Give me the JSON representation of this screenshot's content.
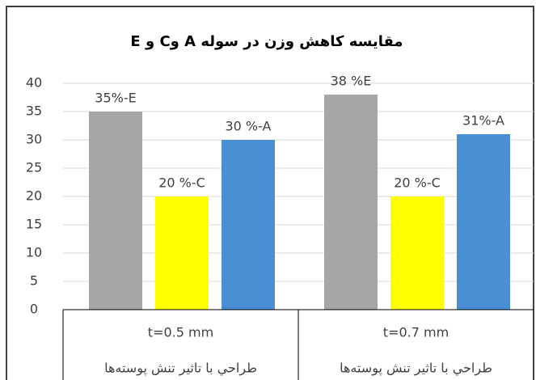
{
  "chart_data": {
    "type": "bar",
    "title": "مقایسه کاهش وزن در سوله A وC و E",
    "categories": [
      "t=0.5 mm",
      "t=0.7 mm"
    ],
    "subcategories": [
      "طراحي با تاثير تنش پوسته‌ها",
      "طراحي با تاثير تنش پوسته‌ها"
    ],
    "series": [
      {
        "color": "#a6a6a6",
        "values": [
          35,
          38
        ],
        "value_labels": [
          "35%-E",
          "38 %E"
        ]
      },
      {
        "color": "#ffff00",
        "values": [
          20,
          20
        ],
        "value_labels": [
          "20 %-C",
          "20 %-C"
        ]
      },
      {
        "color": "#4a8fd4",
        "values": [
          30,
          31
        ],
        "value_labels": [
          "30 %-A",
          "31%-A"
        ]
      }
    ],
    "ylim": [
      0,
      40
    ],
    "yticks": [
      0,
      5,
      10,
      15,
      20,
      25,
      30,
      35,
      40
    ],
    "grid": true
  }
}
